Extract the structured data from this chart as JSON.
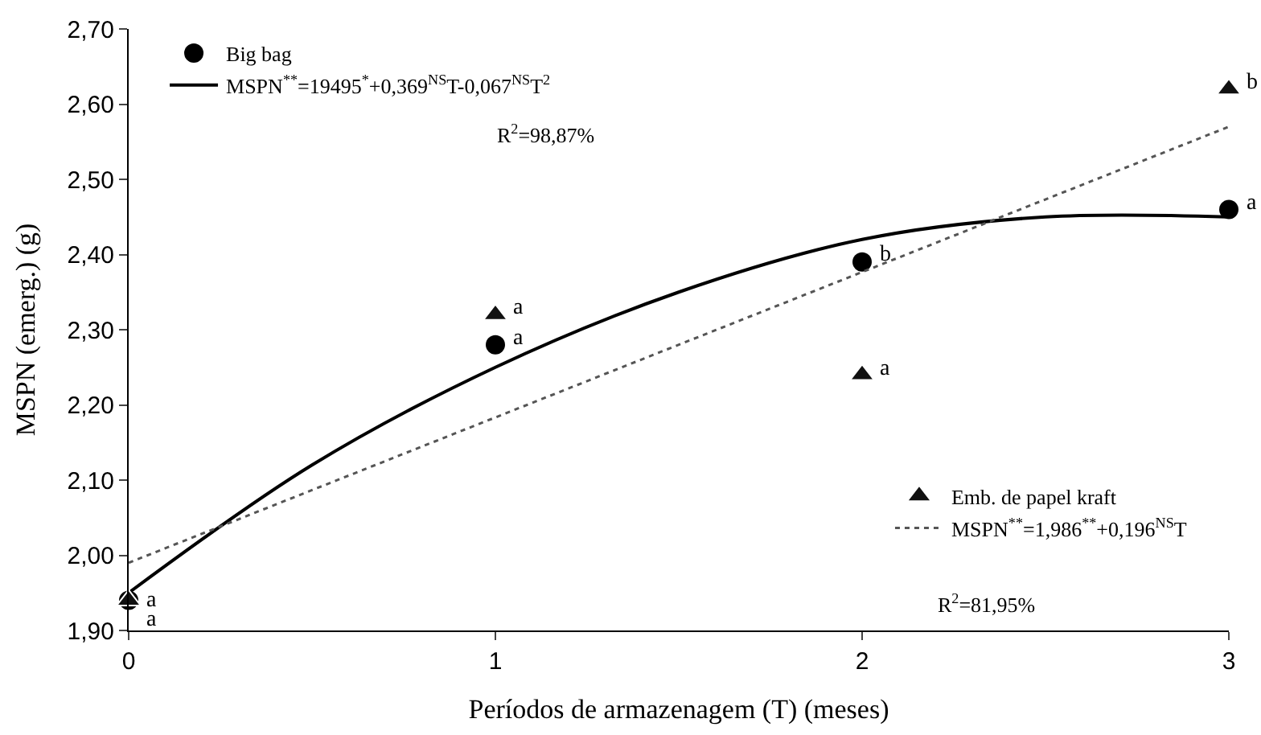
{
  "chart_data": {
    "type": "scatter",
    "xlabel": "Períodos de armazenagem (T) (meses)",
    "ylabel": "MSPN (emerg.) (g)",
    "x": [
      0,
      1,
      2,
      3
    ],
    "xlim": [
      0,
      3
    ],
    "xticks": [
      0,
      1,
      2,
      3
    ],
    "ylim": [
      1.9,
      2.7
    ],
    "yticks": [
      {
        "value": 1.9,
        "label": "1,90"
      },
      {
        "value": 2.0,
        "label": "2,00"
      },
      {
        "value": 2.1,
        "label": "2,10"
      },
      {
        "value": 2.2,
        "label": "2,20"
      },
      {
        "value": 2.3,
        "label": "2,30"
      },
      {
        "value": 2.4,
        "label": "2,40"
      },
      {
        "value": 2.5,
        "label": "2,50"
      },
      {
        "value": 2.6,
        "label": "2,60"
      },
      {
        "value": 2.7,
        "label": "2,70"
      }
    ],
    "legend": "top left",
    "series": [
      {
        "name": "Big bag",
        "type": "scatter",
        "marker": "circle",
        "color": "#000000",
        "values": [
          1.94,
          2.28,
          2.39,
          2.46
        ],
        "value_labels": [
          "a",
          "a",
          "b",
          "a"
        ]
      },
      {
        "name": "MSPN$^{**}$=19495$^{*}$+0,369$^{NS}$T-0,067$^{NS}$T$^{2}$",
        "type": "line",
        "line_style": "solid",
        "color": "#000000",
        "x": [
          0,
          0.5,
          1,
          1.5,
          2,
          2.5,
          3
        ],
        "values": [
          1.95,
          2.12,
          2.25,
          2.35,
          2.42,
          2.45,
          2.45
        ]
      },
      {
        "name": "Emb. de papel kraft",
        "type": "scatter",
        "marker": "triangle",
        "color": "#111111",
        "values": [
          1.94,
          2.32,
          2.24,
          2.62
        ],
        "value_labels": [
          "a",
          "a",
          "a",
          "b"
        ]
      },
      {
        "name": "MSPN$^{**}$=1,986$^{**}$+0,196$^{NS}$T",
        "type": "line",
        "line_style": "dotted",
        "color": "#555555",
        "x": [
          0,
          3
        ],
        "values": [
          1.99,
          2.57
        ]
      }
    ],
    "annotations": [
      {
        "text": "R$^{2}$=98,87%"
      },
      {
        "text": "R$^{2}$=81,95%"
      }
    ]
  }
}
